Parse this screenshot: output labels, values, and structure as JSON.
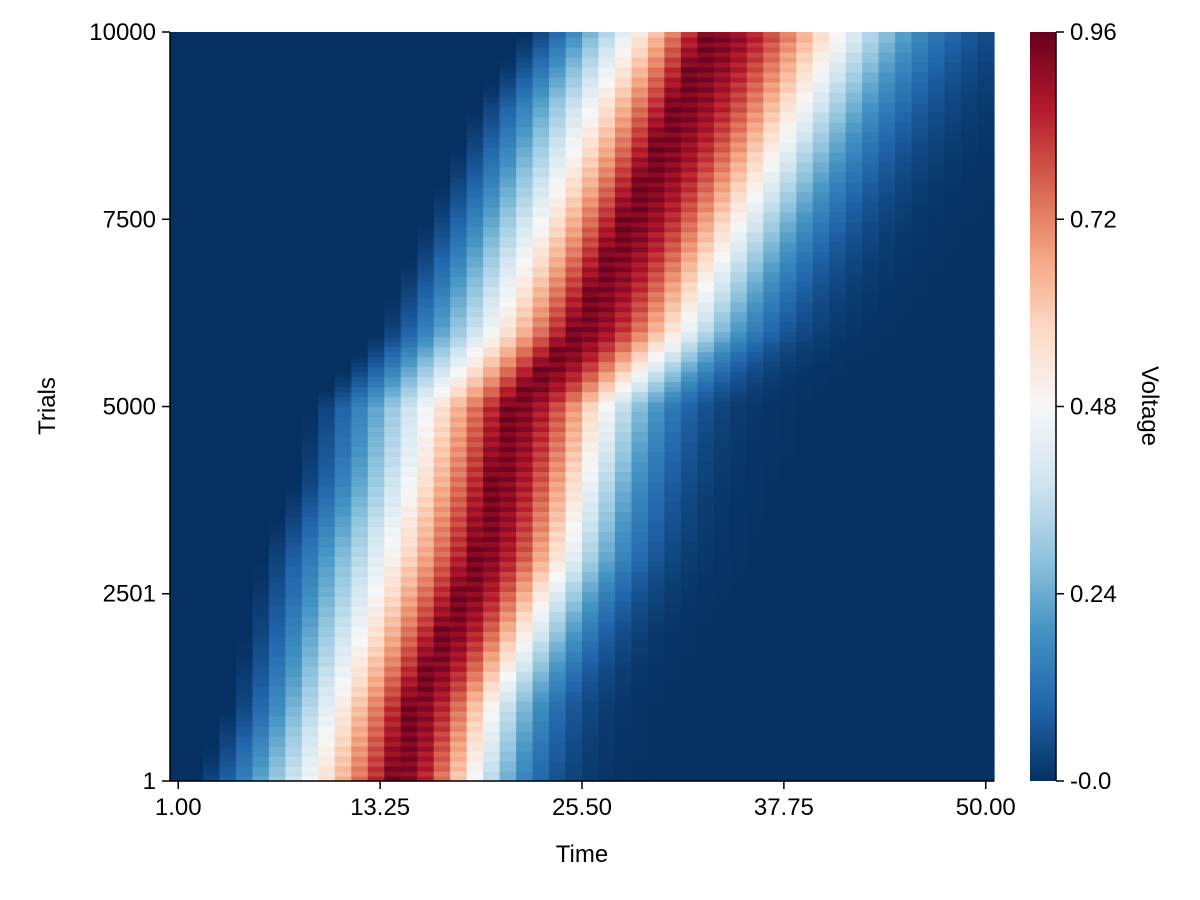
{
  "chart_data": {
    "type": "heatmap",
    "title": "",
    "xlabel": "Time",
    "ylabel": "Trials",
    "colorbar_label": "Voltage",
    "colormap": "RdBu (reversed: low = dark blue, high = dark red)",
    "x_range": [
      1,
      50
    ],
    "y_range": [
      1,
      10000
    ],
    "value_range": [
      0,
      0.96
    ],
    "x_ticks": [
      "1.00",
      "13.25",
      "25.50",
      "37.75",
      "50.00"
    ],
    "y_ticks": [
      "1",
      "2501",
      "5000",
      "7500",
      "10000"
    ],
    "colorbar_ticks": [
      "-0.0",
      "0.24",
      "0.48",
      "0.72",
      "0.96"
    ],
    "peak_profile": {
      "trials": [
        1,
        1000,
        2000,
        3000,
        4000,
        5000,
        6000,
        7000,
        8000,
        9000,
        10000
      ],
      "onset_time": [
        2,
        4,
        5,
        6,
        8,
        9,
        13,
        15,
        17,
        19,
        22
      ],
      "peak_time": [
        14,
        15,
        17,
        19,
        20,
        21,
        25,
        27,
        29,
        31,
        33
      ],
      "peak_width": [
        6,
        6.2,
        6.5,
        6.8,
        7,
        7.2,
        8,
        8.5,
        9,
        9.5,
        10
      ]
    },
    "grid": false,
    "legend": "colorbar-right"
  },
  "colors": {
    "low": "#053061",
    "mid": "#f7f7f7",
    "high": "#67001f"
  }
}
